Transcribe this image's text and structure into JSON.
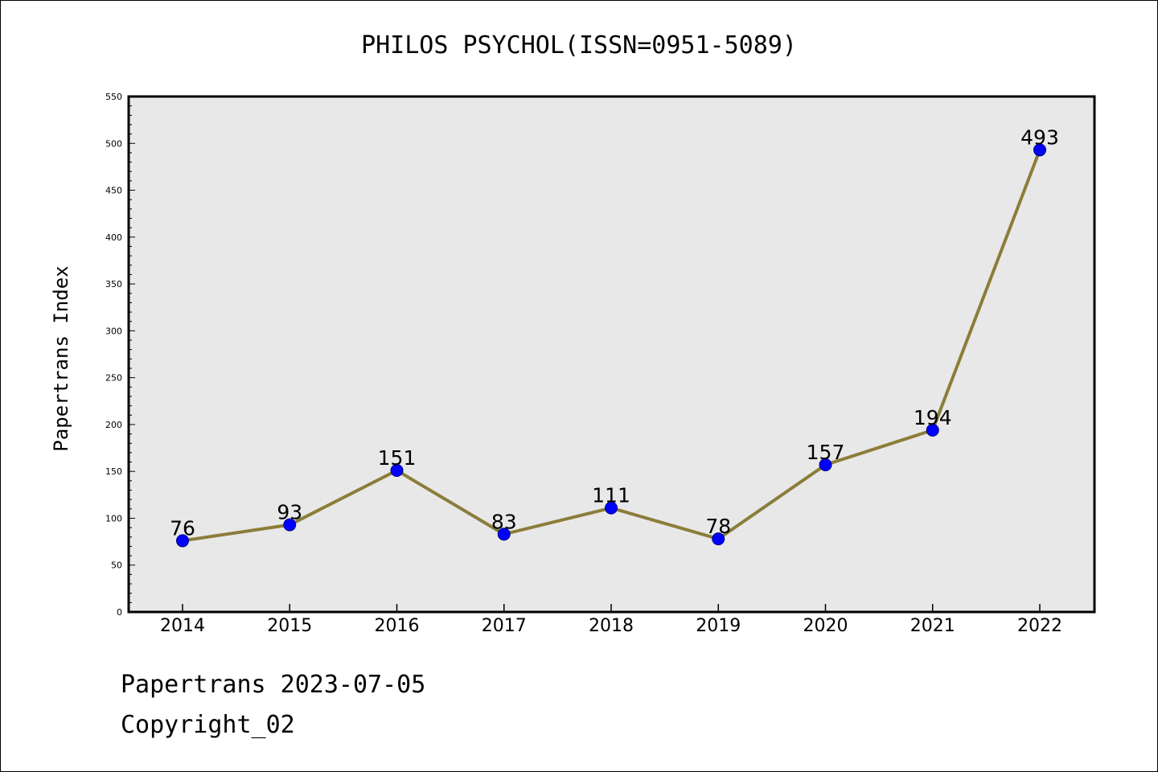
{
  "chart_data": {
    "type": "line",
    "title": "PHILOS PSYCHOL(ISSN=0951-5089)",
    "xlabel": "",
    "ylabel": "Papertrans Index",
    "categories": [
      "2014",
      "2015",
      "2016",
      "2017",
      "2018",
      "2019",
      "2020",
      "2021",
      "2022"
    ],
    "values": [
      76,
      93,
      151,
      83,
      111,
      78,
      157,
      194,
      493
    ],
    "ylim": [
      0,
      550
    ],
    "yticks": [
      0,
      50,
      100,
      150,
      200,
      250,
      300,
      350,
      400,
      450,
      500,
      550
    ],
    "grid": false,
    "legend": "none",
    "colors": {
      "line": "#8B7D3A",
      "marker": "#0000FF",
      "plot_bg": "#E8E8E8"
    }
  },
  "footer": {
    "line1": "Papertrans 2023-07-05",
    "line2": "Copyright_02"
  }
}
